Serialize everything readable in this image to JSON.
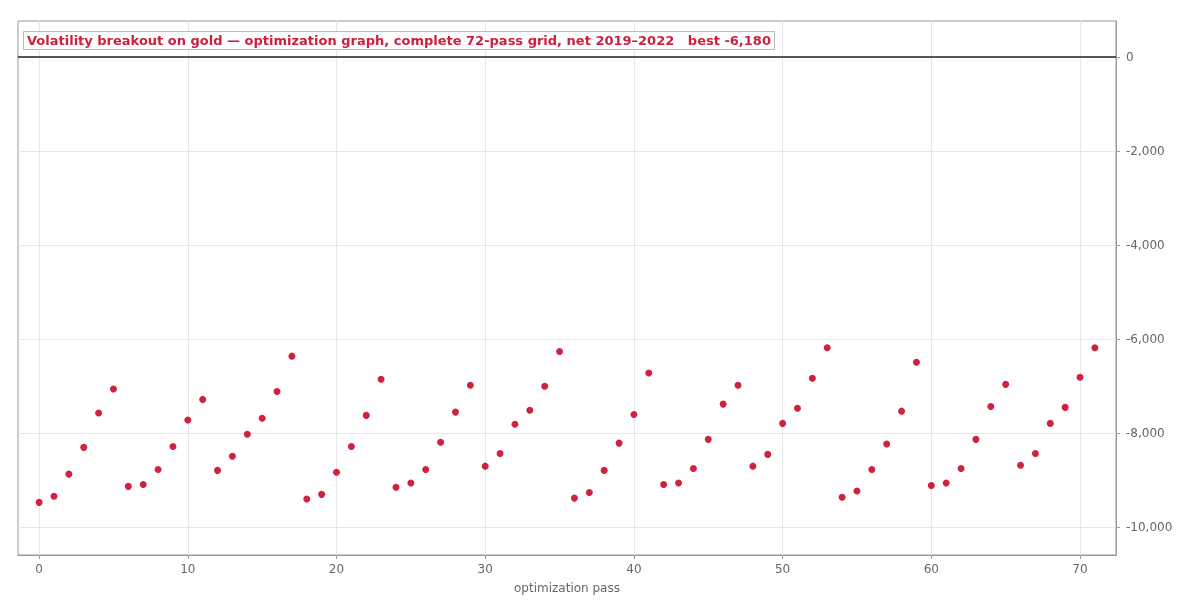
{
  "chart_data": {
    "type": "scatter",
    "title": "Volatility breakout on gold — optimization graph, complete 72-pass grid, net 2019–2022   best -6,180",
    "xlabel": "optimization pass",
    "x": [
      0,
      1,
      2,
      3,
      4,
      5,
      6,
      7,
      8,
      9,
      10,
      11,
      12,
      13,
      14,
      15,
      16,
      17,
      18,
      19,
      20,
      21,
      22,
      23,
      24,
      25,
      26,
      27,
      28,
      29,
      30,
      31,
      32,
      33,
      34,
      35,
      36,
      37,
      38,
      39,
      40,
      41,
      42,
      43,
      44,
      45,
      46,
      47,
      48,
      49,
      50,
      51,
      52,
      53,
      54,
      55,
      56,
      57,
      58,
      59,
      60,
      61,
      62,
      63,
      64,
      65,
      66,
      67,
      68,
      69,
      70,
      71
    ],
    "values": [
      -9470,
      -9340,
      -8870,
      -8300,
      -7570,
      -7060,
      -9130,
      -9090,
      -8770,
      -8280,
      -7720,
      -7280,
      -8790,
      -8490,
      -8020,
      -7680,
      -7110,
      -6360,
      -9400,
      -9300,
      -8830,
      -8280,
      -7620,
      -6850,
      -9150,
      -9060,
      -8770,
      -8190,
      -7550,
      -6980,
      -8700,
      -8430,
      -7810,
      -7510,
      -7000,
      -6260,
      -9380,
      -9260,
      -8790,
      -8210,
      -7600,
      -6720,
      -9090,
      -9060,
      -8750,
      -8130,
      -7380,
      -6980,
      -8700,
      -8450,
      -7790,
      -7470,
      -6830,
      -6180,
      -9360,
      -9230,
      -8770,
      -8230,
      -7530,
      -6490,
      -9110,
      -9060,
      -8750,
      -8130,
      -7430,
      -6960,
      -8680,
      -8430,
      -7790,
      -7450,
      -6810,
      -6180
    ],
    "color": "#d0213f",
    "marker": "circle",
    "xlim": [
      -1.42,
      72.42
    ],
    "xticks": [
      0,
      10,
      20,
      30,
      40,
      50,
      60,
      70
    ],
    "ylim": [
      -10590,
      770
    ],
    "yticks": [
      {
        "value": -10000,
        "label": "-10,000"
      },
      {
        "value": -8000,
        "label": "-8,000"
      },
      {
        "value": -6000,
        "label": "-6,000"
      },
      {
        "value": -4000,
        "label": "-4,000"
      },
      {
        "value": -2000,
        "label": "-2,000"
      },
      0
    ],
    "grid": true,
    "ref_lines": [
      {
        "axis": "y",
        "value": 0,
        "color": "#222222",
        "line_style": "solid"
      }
    ]
  }
}
